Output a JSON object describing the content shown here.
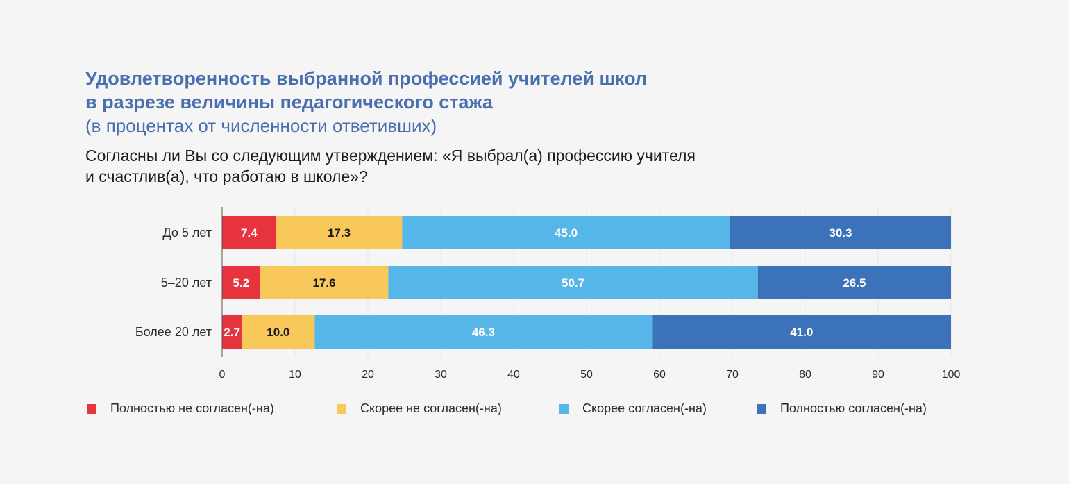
{
  "title_line1": "Удовлетворенность выбранной профессией учителей школ",
  "title_line2": "в разрезе величины педагогического стажа",
  "subtitle": "(в процентах от численности ответивших)",
  "question_line1": "Согласны ли Вы со следующим утверждением: «Я выбрал(а) профессию учителя",
  "question_line2": "и счастлив(а), что работаю в школе»?",
  "chart_data": {
    "type": "bar",
    "orientation": "horizontal",
    "stacked": true,
    "categories": [
      "До 5 лет",
      "5–20 лет",
      "Более 20 лет"
    ],
    "series": [
      {
        "name": "Полностью не согласен(-на)",
        "color": "#e8343f",
        "label_color": "#ffffff",
        "values": [
          7.4,
          5.2,
          2.7
        ]
      },
      {
        "name": "Скорее не согласен(-на)",
        "color": "#f9c85b",
        "label_color": "#1a1a1a",
        "values": [
          17.3,
          17.6,
          10.0
        ]
      },
      {
        "name": "Скорее согласен(-на)",
        "color": "#56b6e8",
        "label_color": "#ffffff",
        "values": [
          45.0,
          50.7,
          46.3
        ]
      },
      {
        "name": "Полностью согласен(-на)",
        "color": "#3b72b9",
        "label_color": "#ffffff",
        "values": [
          30.3,
          26.5,
          41.0
        ]
      }
    ],
    "xlim": [
      0,
      100
    ],
    "xticks": [
      0,
      10,
      20,
      30,
      40,
      50,
      60,
      70,
      80,
      90,
      100
    ],
    "grid": true,
    "legend_position": "bottom"
  }
}
